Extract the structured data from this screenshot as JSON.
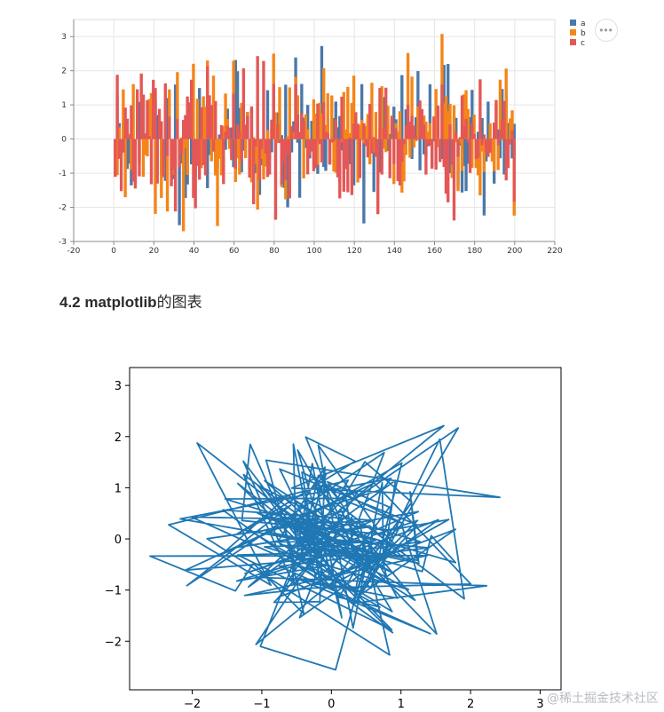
{
  "section_heading": {
    "number": "4.2 matplotlib",
    "suffix": "的图表"
  },
  "more_button": {
    "label": "•••"
  },
  "watermark": "@稀土掘金技术社区",
  "chart_data": [
    {
      "type": "bar",
      "series": [
        {
          "name": "a",
          "color": "#4c78a8",
          "seed": 11
        },
        {
          "name": "b",
          "color": "#f58518",
          "seed": 23
        },
        {
          "name": "c",
          "color": "#e45756",
          "seed": 37
        }
      ],
      "x_count": 200,
      "xlim": [
        -20,
        220
      ],
      "xticks": [
        -20,
        0,
        20,
        40,
        60,
        80,
        100,
        120,
        140,
        160,
        180,
        200,
        220
      ],
      "ylim": [
        -3,
        3.5
      ],
      "yticks": [
        -3,
        -2,
        -1,
        0,
        1,
        2,
        3
      ],
      "values_note": "random normal values per index",
      "grid": true,
      "legend": "right-top"
    },
    {
      "type": "line",
      "series": [
        {
          "color": "#1f77b4",
          "seed": 101,
          "points": 200
        }
      ],
      "xlim": [
        -2.9,
        3.3
      ],
      "xticks": [
        -2,
        -1,
        0,
        1,
        2,
        3
      ],
      "xtick_labels": [
        "−2",
        "−1",
        "0",
        "1",
        "2",
        "3"
      ],
      "ylim": [
        -2.95,
        3.35
      ],
      "yticks": [
        -2,
        -1,
        0,
        1,
        2,
        3
      ],
      "ytick_labels": [
        "−2",
        "−1",
        "0",
        "1",
        "2",
        "3"
      ],
      "grid": false
    }
  ]
}
